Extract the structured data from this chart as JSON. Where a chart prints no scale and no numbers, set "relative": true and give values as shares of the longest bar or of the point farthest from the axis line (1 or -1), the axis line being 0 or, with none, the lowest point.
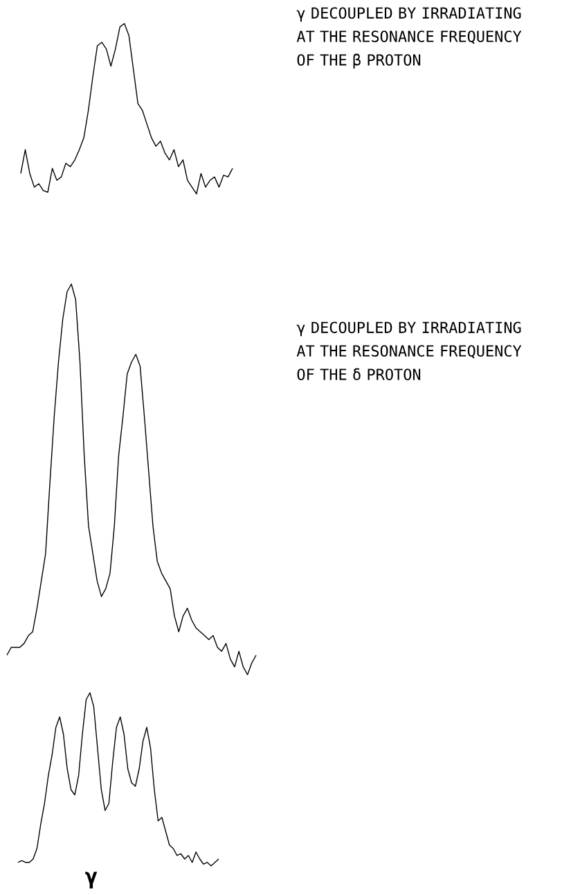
{
  "chart_data": [
    {
      "type": "line",
      "relative": true,
      "categories": [
        null,
        null,
        null,
        null,
        null,
        null,
        null,
        null,
        null,
        null,
        null,
        null,
        null,
        null,
        null,
        null,
        null,
        null,
        null,
        null,
        null,
        null,
        null,
        null,
        null,
        null,
        null,
        null,
        null,
        null,
        null,
        null,
        null,
        null,
        null,
        null,
        null,
        null,
        null,
        null,
        null,
        null,
        null,
        null,
        null,
        null,
        null,
        null
      ],
      "series": [
        {
          "color": "#000000",
          "values": [
            0.12,
            0.26,
            0.12,
            0.04,
            0.06,
            0.02,
            0.01,
            0.15,
            0.08,
            0.1,
            0.18,
            0.16,
            0.2,
            0.26,
            0.33,
            0.49,
            0.69,
            0.87,
            0.89,
            0.85,
            0.75,
            0.85,
            0.98,
            1,
            0.93,
            0.73,
            0.53,
            0.49,
            0.41,
            0.33,
            0.28,
            0.31,
            0.24,
            0.2,
            0.26,
            0.16,
            0.2,
            0.08,
            0.04,
            0,
            0.12,
            0.04,
            0.08,
            0.1,
            0.04,
            0.11,
            0.1,
            0.15
          ]
        }
      ],
      "annotations": [
        "γ DECOUPLED BY IRRADIATING AT THE RESONANCE FREQUENCY OF THE β PROTON"
      ]
    },
    {
      "type": "line",
      "relative": true,
      "categories": [
        null,
        null,
        null,
        null,
        null,
        null,
        null,
        null,
        null,
        null,
        null,
        null,
        null,
        null,
        null,
        null,
        null,
        null,
        null,
        null,
        null,
        null,
        null,
        null,
        null,
        null,
        null,
        null,
        null,
        null,
        null,
        null,
        null,
        null,
        null,
        null,
        null,
        null,
        null,
        null,
        null,
        null,
        null,
        null,
        null,
        null,
        null,
        null,
        null,
        null,
        null,
        null,
        null,
        null,
        null,
        null,
        null,
        null,
        null
      ],
      "series": [
        {
          "color": "#000000",
          "values": [
            0.05,
            0.07,
            0.07,
            0.07,
            0.08,
            0.1,
            0.11,
            0.17,
            0.24,
            0.31,
            0.49,
            0.66,
            0.8,
            0.91,
            0.98,
            1,
            0.96,
            0.8,
            0.56,
            0.38,
            0.31,
            0.24,
            0.2,
            0.22,
            0.26,
            0.38,
            0.56,
            0.66,
            0.77,
            0.8,
            0.82,
            0.79,
            0.66,
            0.52,
            0.38,
            0.29,
            0.26,
            0.24,
            0.22,
            0.15,
            0.11,
            0.15,
            0.17,
            0.14,
            0.12,
            0.11,
            0.1,
            0.09,
            0.1,
            0.07,
            0.06,
            0.08,
            0.04,
            0.02,
            0.06,
            0.02,
            0,
            0.03,
            0.05
          ]
        }
      ],
      "annotations": [
        "γ DECOUPLED BY IRRADIATING AT THE RESONANCE FREQUENCY OF THE δ PROTON"
      ]
    },
    {
      "type": "line",
      "relative": true,
      "categories": [
        null,
        null,
        null,
        null,
        null,
        null,
        null,
        null,
        null,
        null,
        null,
        null,
        null,
        null,
        null,
        null,
        null,
        null,
        null,
        null,
        null,
        null,
        null,
        null,
        null,
        null,
        null,
        null,
        null,
        null,
        null,
        null,
        null,
        null,
        null,
        null,
        null,
        null,
        null,
        null,
        null,
        null,
        null,
        null,
        null,
        null,
        null,
        null,
        null,
        null,
        null,
        null,
        null,
        null
      ],
      "series": [
        {
          "color": "#000000",
          "values": [
            0.02,
            0.03,
            0.02,
            0.02,
            0.04,
            0.1,
            0.24,
            0.36,
            0.52,
            0.64,
            0.8,
            0.86,
            0.76,
            0.56,
            0.44,
            0.41,
            0.52,
            0.76,
            0.96,
            1,
            0.92,
            0.68,
            0.44,
            0.32,
            0.36,
            0.6,
            0.8,
            0.86,
            0.76,
            0.56,
            0.48,
            0.46,
            0.56,
            0.72,
            0.8,
            0.68,
            0.44,
            0.26,
            0.28,
            0.2,
            0.12,
            0.1,
            0.06,
            0.07,
            0.04,
            0.06,
            0.02,
            0.08,
            0.04,
            0.01,
            0.02,
            0,
            0.02,
            0.04
          ]
        }
      ],
      "xlabel": "γ"
    }
  ]
}
